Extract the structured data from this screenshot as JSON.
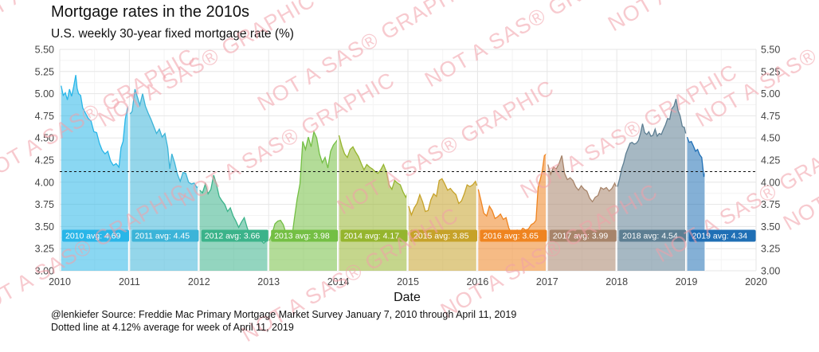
{
  "chart_data": {
    "type": "area",
    "title": "Mortgage rates in the 2010s",
    "subtitle": "U.S. weekly 30-year fixed mortgage rate (%)",
    "xlabel": "Date",
    "ylabel": "",
    "xlim": [
      2010,
      2020
    ],
    "ylim": [
      3.0,
      5.5
    ],
    "x_ticks": [
      "2010",
      "2011",
      "2012",
      "2013",
      "2014",
      "2015",
      "2016",
      "2017",
      "2018",
      "2019",
      "2020"
    ],
    "y_ticks": [
      "3.00",
      "3.25",
      "3.50",
      "3.75",
      "4.00",
      "4.25",
      "4.50",
      "4.75",
      "5.00",
      "5.25",
      "5.50"
    ],
    "grid": true,
    "reference_line": {
      "value": 4.12,
      "style": "dotted"
    },
    "series": [
      {
        "year": 2010,
        "label": "2010 avg: 4.69",
        "color": "#29b6e8",
        "x": [
          2010.02,
          2010.05,
          2010.08,
          2010.11,
          2010.14,
          2010.17,
          2010.2,
          2010.23,
          2010.25,
          2010.27,
          2010.3,
          2010.33,
          2010.37,
          2010.41,
          2010.45,
          2010.49,
          2010.53,
          2010.57,
          2010.61,
          2010.65,
          2010.69,
          2010.73,
          2010.77,
          2010.81,
          2010.85,
          2010.88,
          2010.91,
          2010.94,
          2010.97,
          2010.99
        ],
        "y": [
          5.09,
          4.98,
          5.01,
          4.93,
          5.05,
          4.97,
          5.08,
          5.21,
          5.06,
          5.0,
          4.98,
          4.84,
          4.78,
          4.72,
          4.69,
          4.57,
          4.56,
          4.44,
          4.36,
          4.32,
          4.35,
          4.24,
          4.19,
          4.21,
          4.17,
          4.39,
          4.46,
          4.71,
          4.83,
          4.86
        ]
      },
      {
        "year": 2011,
        "label": "2011 avg: 4.45",
        "color": "#3cb4d8",
        "x": [
          2011.01,
          2011.04,
          2011.08,
          2011.12,
          2011.15,
          2011.19,
          2011.23,
          2011.27,
          2011.31,
          2011.35,
          2011.39,
          2011.43,
          2011.47,
          2011.51,
          2011.55,
          2011.58,
          2011.61,
          2011.65,
          2011.69,
          2011.73,
          2011.77,
          2011.81,
          2011.85,
          2011.89,
          2011.93,
          2011.97,
          2011.99
        ],
        "y": [
          4.77,
          4.8,
          5.05,
          4.95,
          4.87,
          5.0,
          4.86,
          4.78,
          4.71,
          4.63,
          4.55,
          4.6,
          4.51,
          4.55,
          4.39,
          4.15,
          4.32,
          4.22,
          4.09,
          4.01,
          4.11,
          4.1,
          4.0,
          3.98,
          3.99,
          3.94,
          3.95
        ]
      },
      {
        "year": 2012,
        "label": "2012 avg: 3.66",
        "color": "#3bb38a",
        "x": [
          2012.01,
          2012.05,
          2012.09,
          2012.13,
          2012.17,
          2012.21,
          2012.25,
          2012.29,
          2012.33,
          2012.37,
          2012.41,
          2012.45,
          2012.49,
          2012.53,
          2012.57,
          2012.61,
          2012.65,
          2012.69,
          2012.73,
          2012.77,
          2012.81,
          2012.85,
          2012.89,
          2012.93,
          2012.97,
          2012.99
        ],
        "y": [
          3.91,
          3.88,
          3.98,
          3.87,
          3.92,
          4.08,
          3.98,
          3.84,
          3.79,
          3.75,
          3.67,
          3.71,
          3.62,
          3.56,
          3.49,
          3.55,
          3.6,
          3.49,
          3.4,
          3.39,
          3.41,
          3.37,
          3.34,
          3.31,
          3.34,
          3.35
        ]
      },
      {
        "year": 2013,
        "label": "2013 avg: 3.98",
        "color": "#74bf44",
        "x": [
          2013.01,
          2013.05,
          2013.09,
          2013.13,
          2013.17,
          2013.21,
          2013.25,
          2013.29,
          2013.33,
          2013.37,
          2013.41,
          2013.45,
          2013.49,
          2013.53,
          2013.57,
          2013.61,
          2013.65,
          2013.69,
          2013.73,
          2013.77,
          2013.81,
          2013.85,
          2013.89,
          2013.93,
          2013.97,
          2013.99
        ],
        "y": [
          3.34,
          3.42,
          3.53,
          3.56,
          3.57,
          3.52,
          3.42,
          3.4,
          3.35,
          3.59,
          3.81,
          3.98,
          4.46,
          4.37,
          4.51,
          4.4,
          4.57,
          4.5,
          4.32,
          4.22,
          4.28,
          4.16,
          4.35,
          4.42,
          4.46,
          4.48
        ]
      },
      {
        "year": 2014,
        "label": "2014 avg: 4.17",
        "color": "#95b52e",
        "x": [
          2014.01,
          2014.05,
          2014.09,
          2014.13,
          2014.17,
          2014.21,
          2014.25,
          2014.29,
          2014.33,
          2014.37,
          2014.41,
          2014.45,
          2014.49,
          2014.53,
          2014.57,
          2014.61,
          2014.65,
          2014.69,
          2014.73,
          2014.77,
          2014.81,
          2014.85,
          2014.89,
          2014.93,
          2014.97,
          2014.99
        ],
        "y": [
          4.53,
          4.41,
          4.32,
          4.28,
          4.37,
          4.4,
          4.34,
          4.29,
          4.21,
          4.14,
          4.2,
          4.17,
          4.15,
          4.12,
          4.1,
          4.14,
          4.2,
          4.12,
          3.97,
          3.92,
          4.02,
          3.99,
          3.97,
          3.89,
          3.83,
          3.87
        ]
      },
      {
        "year": 2015,
        "label": "2015 avg: 3.85",
        "color": "#c6a229",
        "x": [
          2015.01,
          2015.05,
          2015.09,
          2015.13,
          2015.17,
          2015.21,
          2015.25,
          2015.29,
          2015.33,
          2015.37,
          2015.41,
          2015.45,
          2015.49,
          2015.53,
          2015.57,
          2015.61,
          2015.65,
          2015.69,
          2015.73,
          2015.77,
          2015.81,
          2015.85,
          2015.89,
          2015.93,
          2015.97,
          2015.99
        ],
        "y": [
          3.73,
          3.63,
          3.71,
          3.76,
          3.86,
          3.78,
          3.67,
          3.68,
          3.8,
          3.87,
          3.84,
          4.02,
          4.04,
          3.98,
          3.91,
          3.93,
          3.89,
          3.86,
          3.76,
          3.79,
          3.87,
          3.97,
          3.95,
          3.97,
          4.01,
          3.96
        ]
      },
      {
        "year": 2016,
        "label": "2016 avg: 3.65",
        "color": "#ef8420",
        "x": [
          2016.01,
          2016.05,
          2016.09,
          2016.13,
          2016.17,
          2016.21,
          2016.25,
          2016.29,
          2016.33,
          2016.37,
          2016.41,
          2016.45,
          2016.49,
          2016.53,
          2016.57,
          2016.61,
          2016.65,
          2016.69,
          2016.73,
          2016.77,
          2016.81,
          2016.84,
          2016.87,
          2016.9,
          2016.93,
          2016.96,
          2016.99
        ],
        "y": [
          3.92,
          3.79,
          3.65,
          3.62,
          3.73,
          3.68,
          3.59,
          3.61,
          3.64,
          3.58,
          3.6,
          3.48,
          3.42,
          3.45,
          3.46,
          3.44,
          3.48,
          3.46,
          3.47,
          3.52,
          3.54,
          3.57,
          3.94,
          4.03,
          4.13,
          4.3,
          4.32
        ]
      },
      {
        "year": 2017,
        "label": "2017 avg: 3.99",
        "color": "#a7846a",
        "x": [
          2017.01,
          2017.05,
          2017.09,
          2017.13,
          2017.17,
          2017.21,
          2017.25,
          2017.29,
          2017.33,
          2017.37,
          2017.41,
          2017.45,
          2017.49,
          2017.53,
          2017.57,
          2017.61,
          2017.65,
          2017.69,
          2017.73,
          2017.77,
          2017.81,
          2017.85,
          2017.89,
          2017.93,
          2017.97,
          2017.99
        ],
        "y": [
          4.2,
          4.09,
          4.17,
          4.15,
          4.21,
          4.3,
          4.1,
          4.03,
          4.05,
          4.02,
          3.95,
          3.91,
          3.96,
          3.92,
          3.9,
          3.82,
          3.78,
          3.83,
          3.85,
          3.94,
          3.92,
          3.94,
          3.9,
          3.93,
          3.99,
          3.95
        ]
      },
      {
        "year": 2018,
        "label": "2018 avg: 4.54",
        "color": "#5d7e92",
        "x": [
          2018.01,
          2018.04,
          2018.07,
          2018.1,
          2018.13,
          2018.16,
          2018.19,
          2018.22,
          2018.25,
          2018.28,
          2018.31,
          2018.34,
          2018.37,
          2018.4,
          2018.43,
          2018.46,
          2018.49,
          2018.52,
          2018.55,
          2018.58,
          2018.61,
          2018.64,
          2018.67,
          2018.7,
          2018.73,
          2018.76,
          2018.79,
          2018.82,
          2018.85,
          2018.88,
          2018.91,
          2018.94,
          2018.97,
          2018.99
        ],
        "y": [
          3.95,
          4.04,
          4.15,
          4.22,
          4.32,
          4.38,
          4.44,
          4.45,
          4.43,
          4.44,
          4.47,
          4.55,
          4.66,
          4.56,
          4.54,
          4.57,
          4.52,
          4.53,
          4.6,
          4.52,
          4.55,
          4.54,
          4.6,
          4.65,
          4.72,
          4.71,
          4.83,
          4.86,
          4.94,
          4.81,
          4.75,
          4.63,
          4.62,
          4.55
        ]
      },
      {
        "year": 2019,
        "label": "2019 avg: 4.34",
        "color": "#1f6fb5",
        "x": [
          2019.01,
          2019.04,
          2019.07,
          2019.1,
          2019.13,
          2019.16,
          2019.19,
          2019.22,
          2019.25,
          2019.27
        ],
        "y": [
          4.51,
          4.45,
          4.46,
          4.41,
          4.35,
          4.37,
          4.31,
          4.28,
          4.06,
          4.12
        ]
      }
    ]
  },
  "captions": {
    "line1": "@lenkiefer Source: Freddie Mac Primary Mortgage Market Survey January 7, 2010 through April 11, 2019",
    "line2": "Dotted line at 4.12% average for week of April 11, 2019"
  },
  "watermark": {
    "text": "NOT A SAS® GRAPHIC",
    "color": "#f2a0a8"
  }
}
